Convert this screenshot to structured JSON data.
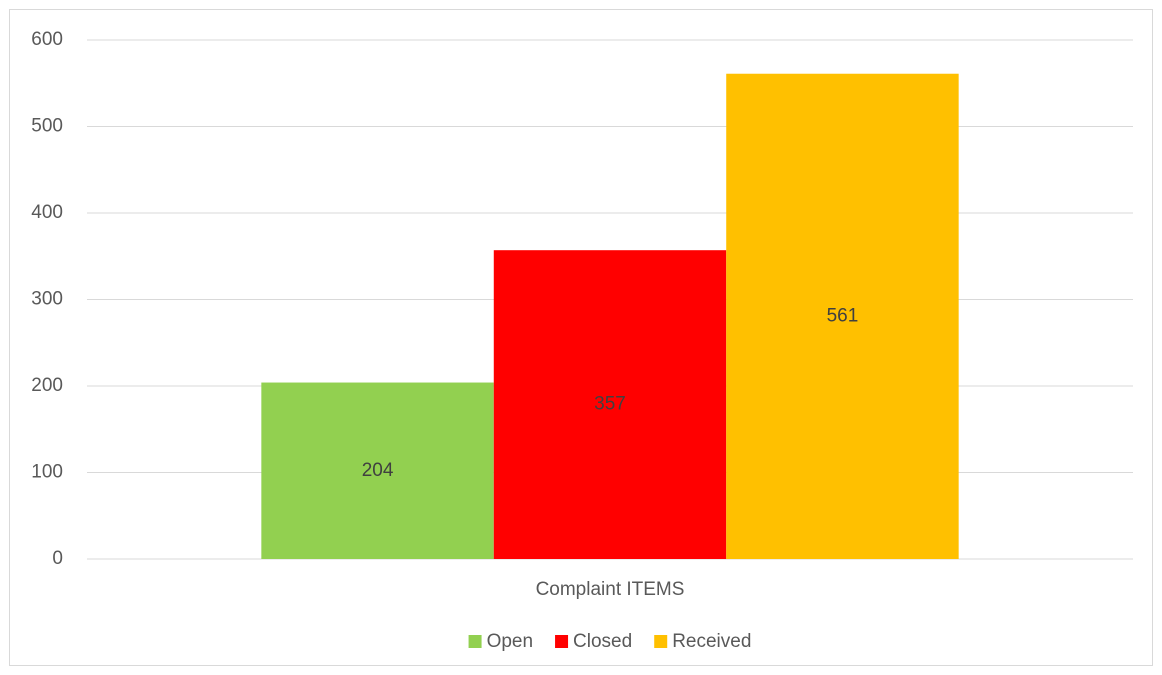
{
  "chart_data": {
    "type": "bar",
    "categories": [
      "Complaint ITEMS"
    ],
    "series": [
      {
        "name": "Open",
        "color": "#92d050",
        "values": [
          204
        ]
      },
      {
        "name": "Closed",
        "color": "#ff0000",
        "values": [
          357
        ]
      },
      {
        "name": "Received",
        "color": "#ffc000",
        "values": [
          561
        ]
      }
    ],
    "ylim": [
      0,
      600
    ],
    "yticks": [
      0,
      100,
      200,
      300,
      400,
      500,
      600
    ],
    "grid": true,
    "legend": "bottom",
    "data_labels": true
  }
}
